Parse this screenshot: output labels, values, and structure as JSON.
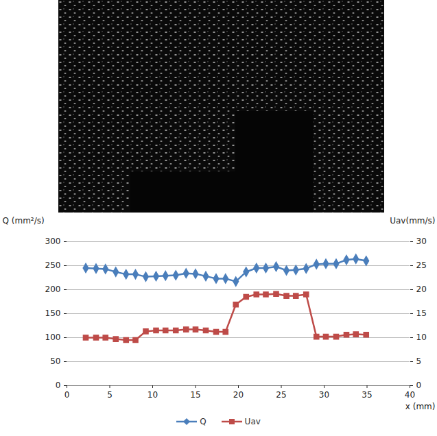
{
  "chart_data": {
    "type": "line",
    "x": [
      2.2,
      3.4,
      4.5,
      5.7,
      6.9,
      8.0,
      9.2,
      10.4,
      11.5,
      12.7,
      13.9,
      15.0,
      16.2,
      17.4,
      18.5,
      19.7,
      20.9,
      22.1,
      23.2,
      24.4,
      25.6,
      26.7,
      27.9,
      29.1,
      30.2,
      31.4,
      32.6,
      33.7,
      34.9
    ],
    "series": [
      {
        "name": "Q",
        "color": "#4a7ebb",
        "marker": "diamond",
        "values": [
          245,
          244,
          243,
          237,
          232,
          232,
          227,
          228,
          229,
          230,
          234,
          233,
          228,
          223,
          223,
          217,
          237,
          245,
          245,
          248,
          240,
          241,
          244,
          253,
          254,
          254,
          262,
          264,
          260
        ]
      },
      {
        "name": "Uav",
        "color": "#be4b48",
        "marker": "square",
        "axis": "y2",
        "values": [
          10.0,
          10.0,
          10.0,
          9.7,
          9.5,
          9.5,
          11.3,
          11.5,
          11.5,
          11.5,
          11.7,
          11.7,
          11.5,
          11.2,
          11.2,
          16.9,
          18.5,
          19.0,
          19.0,
          19.1,
          18.7,
          18.7,
          19.0,
          10.2,
          10.2,
          10.2,
          10.6,
          10.7,
          10.6
        ]
      }
    ],
    "x_label": "x (mm)",
    "y_label": "Q (mm²/s)",
    "y2_label": "Uav(mm/s)",
    "xlim": [
      0,
      40
    ],
    "xticks": [
      0,
      5,
      10,
      15,
      20,
      25,
      30,
      35,
      40
    ],
    "ylim": [
      0,
      300
    ],
    "yticks": [
      0,
      50,
      100,
      150,
      200,
      250,
      300
    ],
    "y2lim": [
      0,
      30
    ],
    "y2ticks": [
      0,
      5,
      10,
      15,
      20,
      25,
      30
    ],
    "grid": true,
    "legend": "bottom"
  }
}
